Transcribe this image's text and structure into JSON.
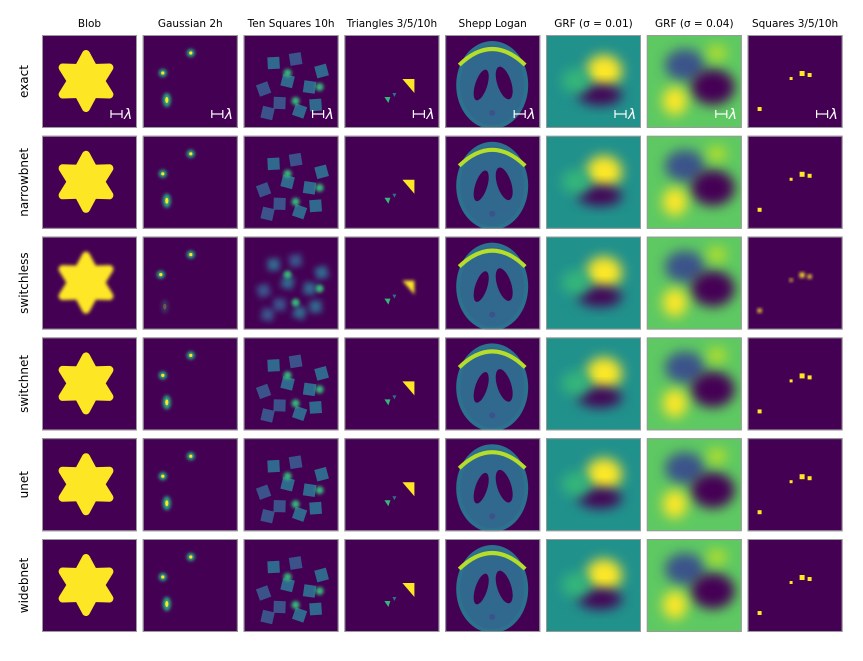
{
  "figure": {
    "columns": [
      "Blob",
      "Gaussian 2h",
      "Ten Squares 10h",
      "Triangles 3/5/10h",
      "Shepp Logan",
      "GRF (σ = 0.01)",
      "GRF (σ = 0.04)",
      "Squares 3/5/10h"
    ],
    "rows": [
      "exact",
      "narrowbnet",
      "switchless",
      "switchnet",
      "unet",
      "widebnet"
    ],
    "scale_bar_label": "λ",
    "scale_bar_row": "exact"
  },
  "colors": {
    "colormap": "viridis",
    "background_dark": "#440154",
    "grf1_background": "#21918c",
    "grf2_background": "#5ec962",
    "bright": "#fde725",
    "panel_border": "#9a9a9a"
  },
  "chart_data": {
    "type": "heatmap",
    "title": "",
    "xlabel": "",
    "ylabel": "",
    "colormap": "viridis",
    "columns": [
      "Blob",
      "Gaussian 2h",
      "Ten Squares 10h",
      "Triangles 3/5/10h",
      "Shepp Logan",
      "GRF (σ = 0.01)",
      "GRF (σ = 0.04)",
      "Squares 3/5/10h"
    ],
    "rows": [
      "exact",
      "narrowbnet",
      "switchless",
      "switchnet",
      "unet",
      "widebnet"
    ]
  }
}
